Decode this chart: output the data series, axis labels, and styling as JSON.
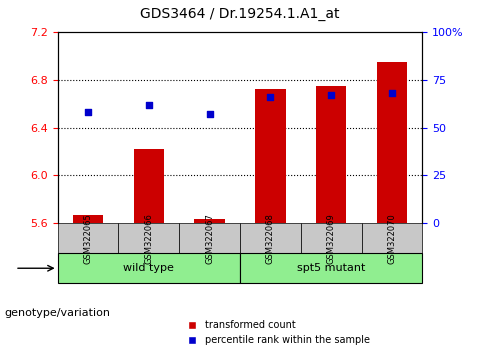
{
  "title": "GDS3464 / Dr.19254.1.A1_at",
  "samples": [
    "GSM322065",
    "GSM322066",
    "GSM322067",
    "GSM322068",
    "GSM322069",
    "GSM322070"
  ],
  "groups": [
    "wild type",
    "wild type",
    "wild type",
    "spt5 mutant",
    "spt5 mutant",
    "spt5 mutant"
  ],
  "transformed_count": [
    5.67,
    6.22,
    5.64,
    6.72,
    6.75,
    6.95
  ],
  "percentile_rank": [
    58,
    62,
    57,
    66,
    67,
    68
  ],
  "ylim_left": [
    5.6,
    7.2
  ],
  "ylim_right": [
    0,
    100
  ],
  "yticks_left": [
    5.6,
    6.0,
    6.4,
    6.8,
    7.2
  ],
  "yticks_right": [
    0,
    25,
    50,
    75,
    100
  ],
  "bar_color": "#cc0000",
  "dot_color": "#0000cc",
  "bar_bottom": 5.6,
  "wildtype_color": "#90ee90",
  "mutant_color": "#90ee90",
  "group_bg_color": "#c8c8c8",
  "legend_bar_label": "transformed count",
  "legend_dot_label": "percentile rank within the sample",
  "group_label": "genotype/variation"
}
